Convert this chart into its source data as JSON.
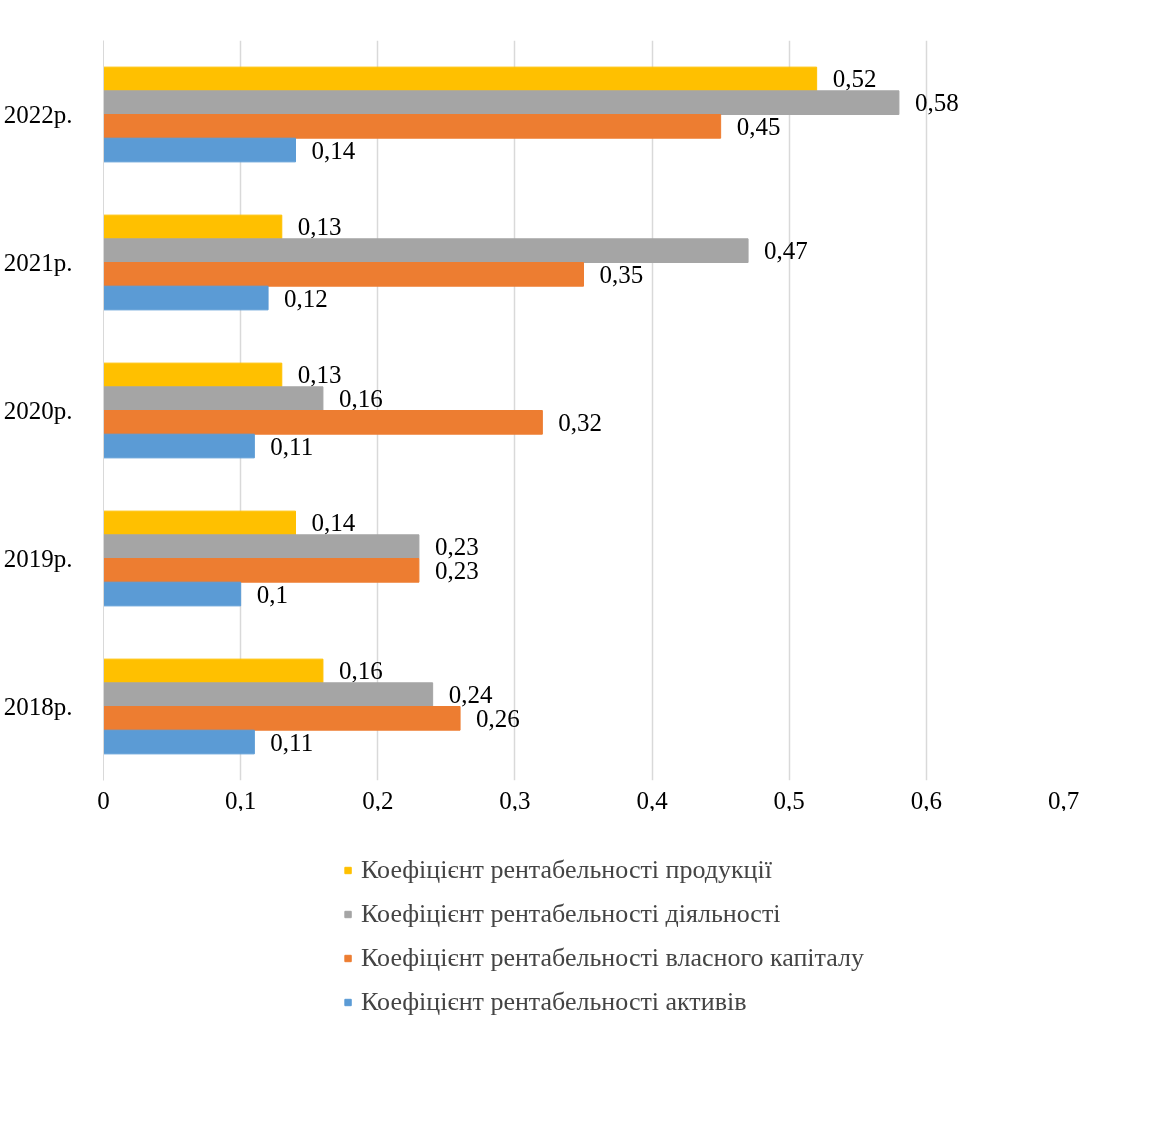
{
  "chart_data": {
    "type": "bar",
    "orientation": "horizontal",
    "categories": [
      "2022р.",
      "2021р.",
      "2020р.",
      "2019р.",
      "2018р."
    ],
    "series": [
      {
        "name": "Коефіцієнт рентабельності продукції",
        "color": "#ffc000",
        "values": [
          0.52,
          0.13,
          0.13,
          0.14,
          0.16
        ],
        "value_labels": [
          "0,52",
          "0,13",
          "0,13",
          "0,14",
          "0,16"
        ]
      },
      {
        "name": "Коефіцієнт рентабельності діяльності",
        "color": "#a5a5a5",
        "values": [
          0.58,
          0.47,
          0.16,
          0.23,
          0.24
        ],
        "value_labels": [
          "0,58",
          "0,47",
          "0,16",
          "0,23",
          "0,24"
        ]
      },
      {
        "name": "Коефіцієнт рентабельності власного капіталу",
        "color": "#ed7d31",
        "values": [
          0.45,
          0.35,
          0.32,
          0.23,
          0.26
        ],
        "value_labels": [
          "0,45",
          "0,35",
          "0,32",
          "0,23",
          "0,26"
        ]
      },
      {
        "name": "Коефіцієнт рентабельності активів",
        "color": "#5b9bd5",
        "values": [
          0.14,
          0.12,
          0.11,
          0.1,
          0.11
        ],
        "value_labels": [
          "0,14",
          "0,12",
          "0,11",
          "0,1",
          "0,11"
        ]
      }
    ],
    "xlim": [
      0,
      0.7
    ],
    "xticks": [
      0,
      {
        "value": 0.1,
        "label": "0,1"
      },
      {
        "value": 0.2,
        "label": "0,2"
      },
      {
        "value": 0.3,
        "label": "0,3"
      },
      {
        "value": 0.4,
        "label": "0,4"
      },
      {
        "value": 0.5,
        "label": "0,5"
      },
      {
        "value": 0.6,
        "label": "0,6"
      },
      {
        "value": 0.7,
        "label": "0,7"
      }
    ],
    "grid": "x",
    "legend": "bottom"
  }
}
